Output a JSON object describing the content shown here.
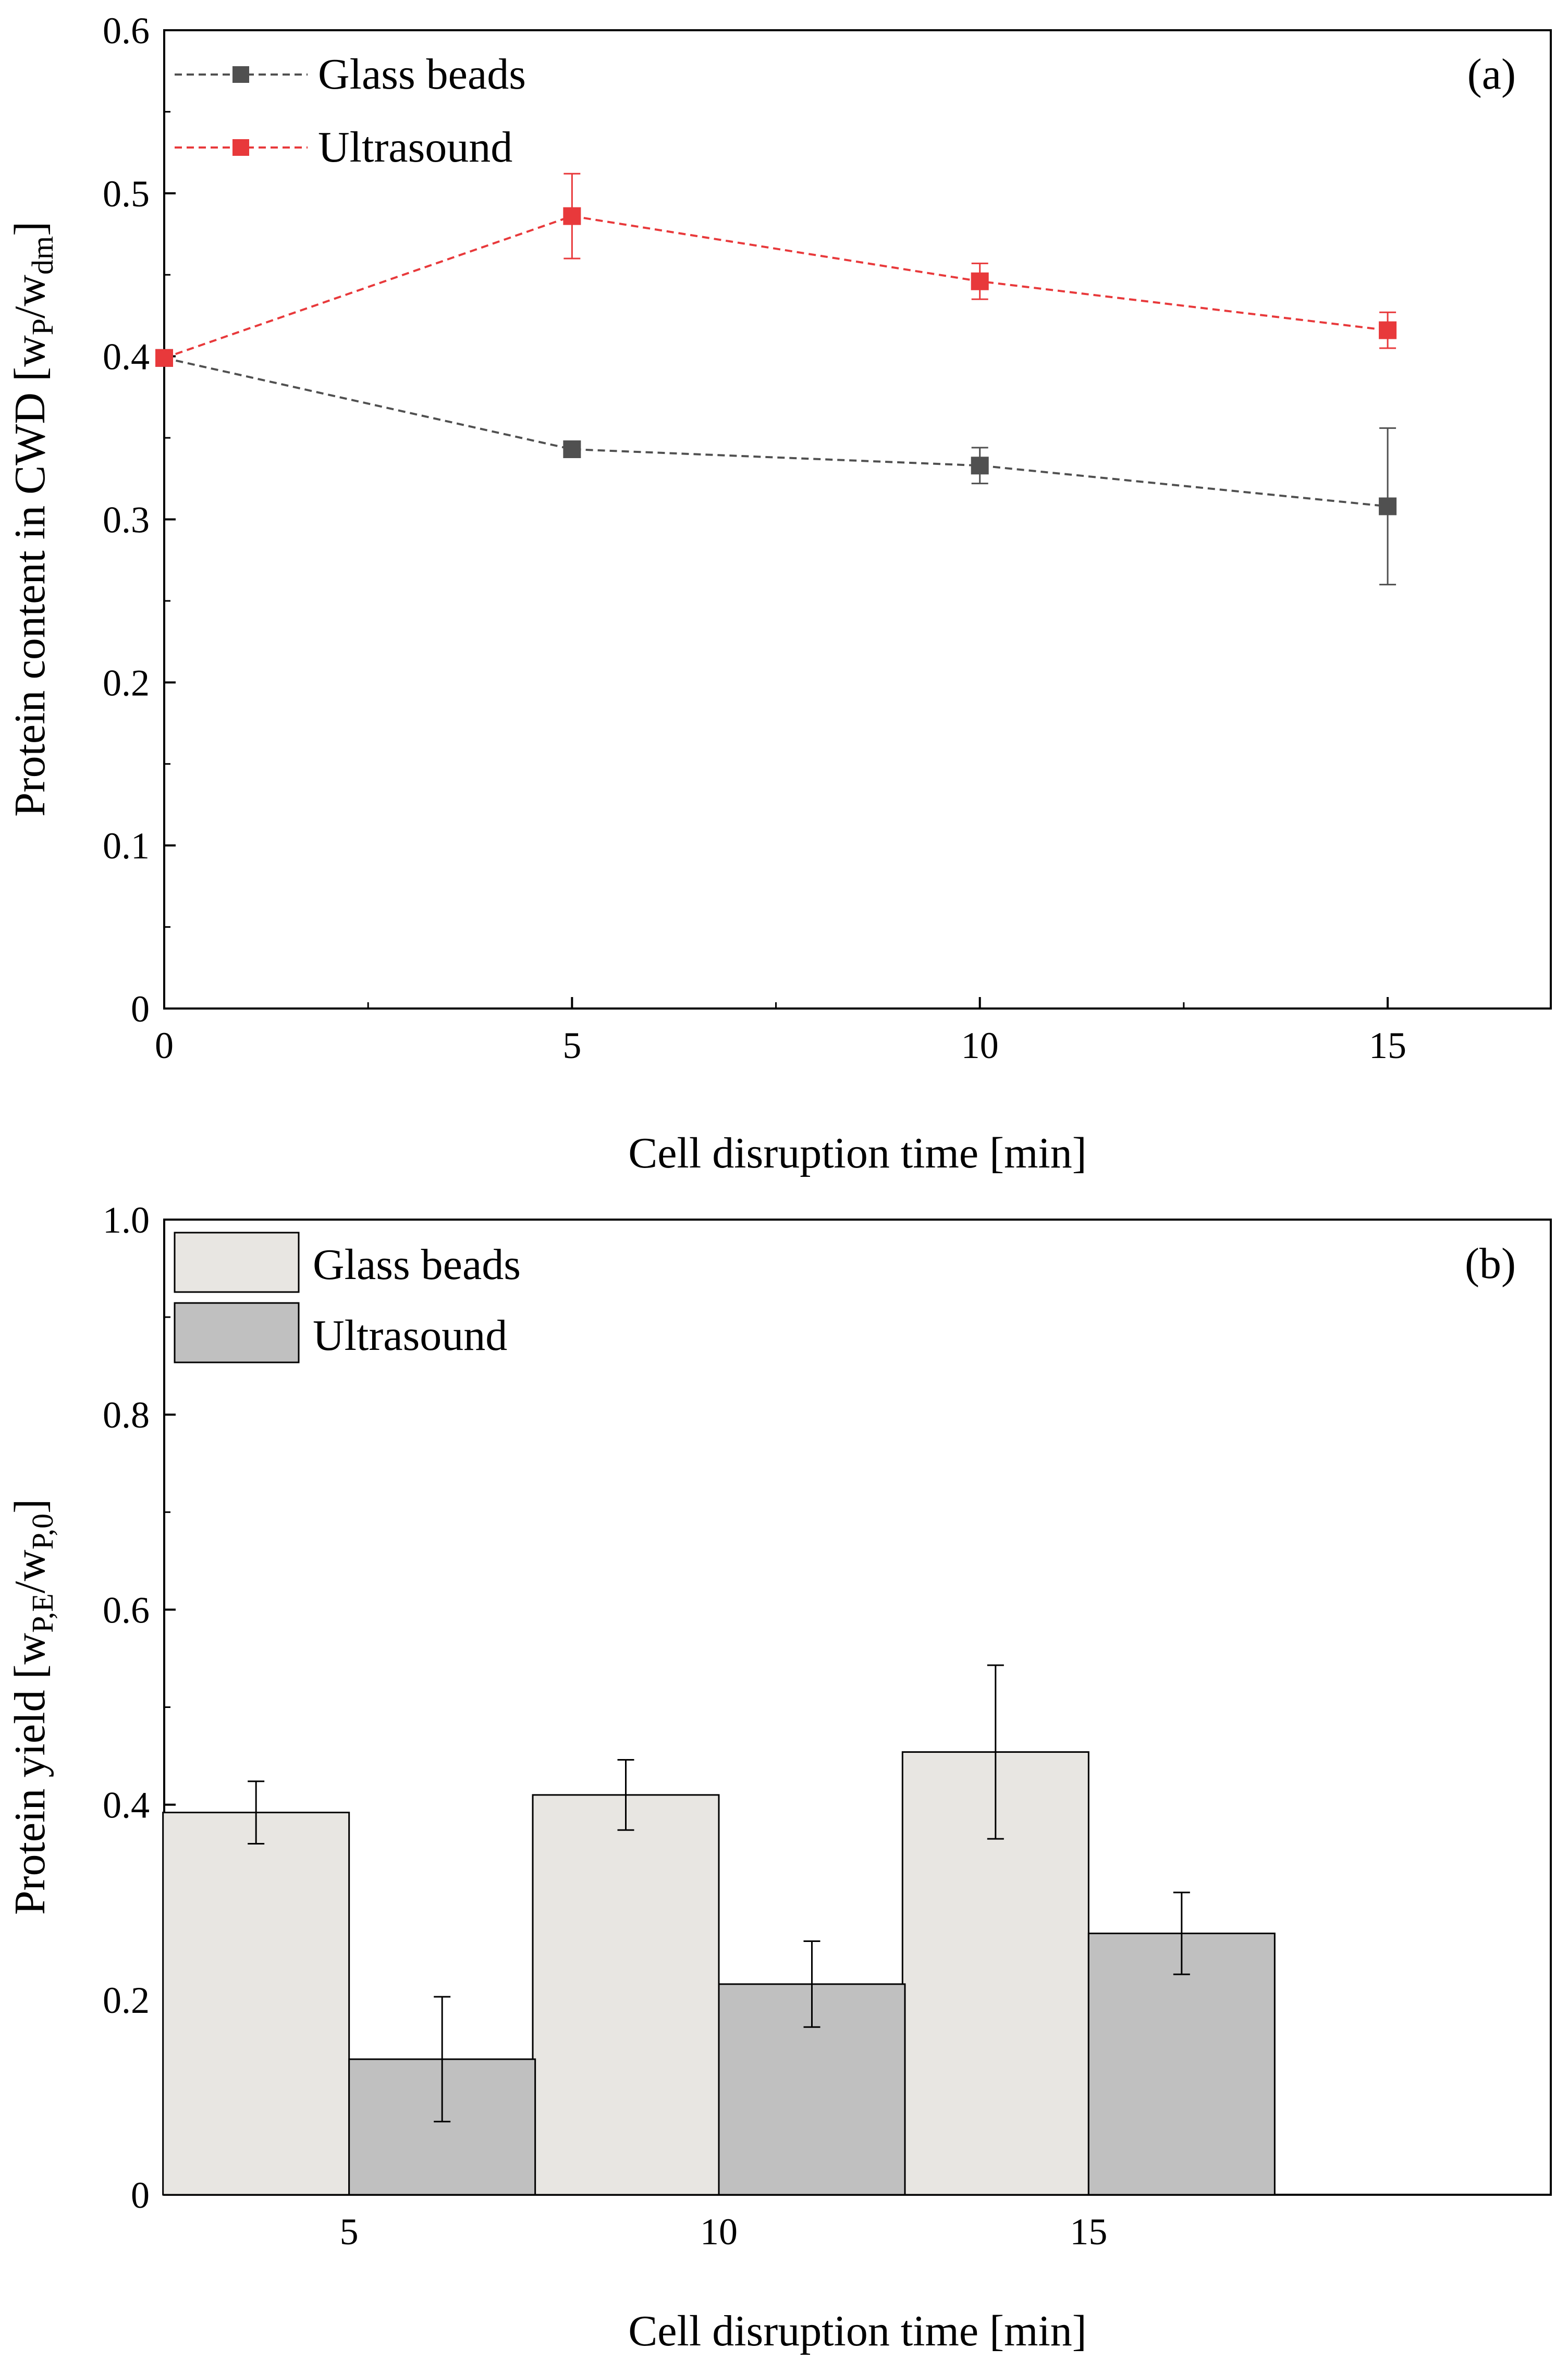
{
  "colors": {
    "glass_line": "#505050",
    "ultra_line": "#e8393b",
    "glass_bar": "#e8e6e2",
    "ultra_bar": "#c0c0c0",
    "axis": "#000000"
  },
  "chart_data": [
    {
      "type": "line",
      "panel_label": "(a)",
      "xlabel": "Cell disruption time [min]",
      "ylabel": {
        "main": "Protein content in CWD [w",
        "sub1": "P",
        "mid": "/w",
        "sub2": "dm",
        "end": "]"
      },
      "xlim": [
        0,
        17
      ],
      "ylim": [
        0,
        0.6
      ],
      "x_ticks": [
        0,
        5,
        10,
        15
      ],
      "x_tick_labels": [
        "0",
        "5",
        "10",
        "15"
      ],
      "y_ticks": [
        0,
        0.1,
        0.2,
        0.3,
        0.4,
        0.5,
        0.6
      ],
      "y_tick_labels": [
        "0",
        "0.1",
        "0.2",
        "0.3",
        "0.4",
        "0.5",
        "0.6"
      ],
      "legend_position": "top-left",
      "series": [
        {
          "name": "Glass beads",
          "color": "#505050",
          "x": [
            0,
            5,
            10,
            15
          ],
          "y": [
            0.399,
            0.343,
            0.333,
            0.308
          ],
          "err": [
            0.0,
            0.0,
            0.011,
            0.048
          ]
        },
        {
          "name": "Ultrasound",
          "color": "#e8393b",
          "x": [
            0,
            5,
            10,
            15
          ],
          "y": [
            0.399,
            0.486,
            0.446,
            0.416
          ],
          "err": [
            0.0,
            0.026,
            0.011,
            0.011
          ]
        }
      ]
    },
    {
      "type": "bar",
      "panel_label": "(b)",
      "xlabel": "Cell disruption time [min]",
      "ylabel": {
        "main": "Protein yield [w",
        "sub1": "P,E",
        "mid": "/w",
        "sub2": "P,0",
        "end": "]"
      },
      "categories": [
        "5",
        "10",
        "15"
      ],
      "ylim": [
        0,
        1.0
      ],
      "y_ticks": [
        0,
        0.2,
        0.4,
        0.6,
        0.8,
        1.0
      ],
      "y_tick_labels": [
        "0",
        "0.2",
        "0.4",
        "0.6",
        "0.8",
        "1.0"
      ],
      "legend_position": "top-left",
      "series": [
        {
          "name": "Glass beads",
          "color": "#e8e6e2",
          "values": [
            0.392,
            0.41,
            0.454
          ],
          "err": [
            0.032,
            0.036,
            0.089
          ]
        },
        {
          "name": "Ultrasound",
          "color": "#c0c0c0",
          "values": [
            0.139,
            0.216,
            0.268
          ],
          "err": [
            0.064,
            0.044,
            0.042
          ]
        }
      ]
    }
  ]
}
